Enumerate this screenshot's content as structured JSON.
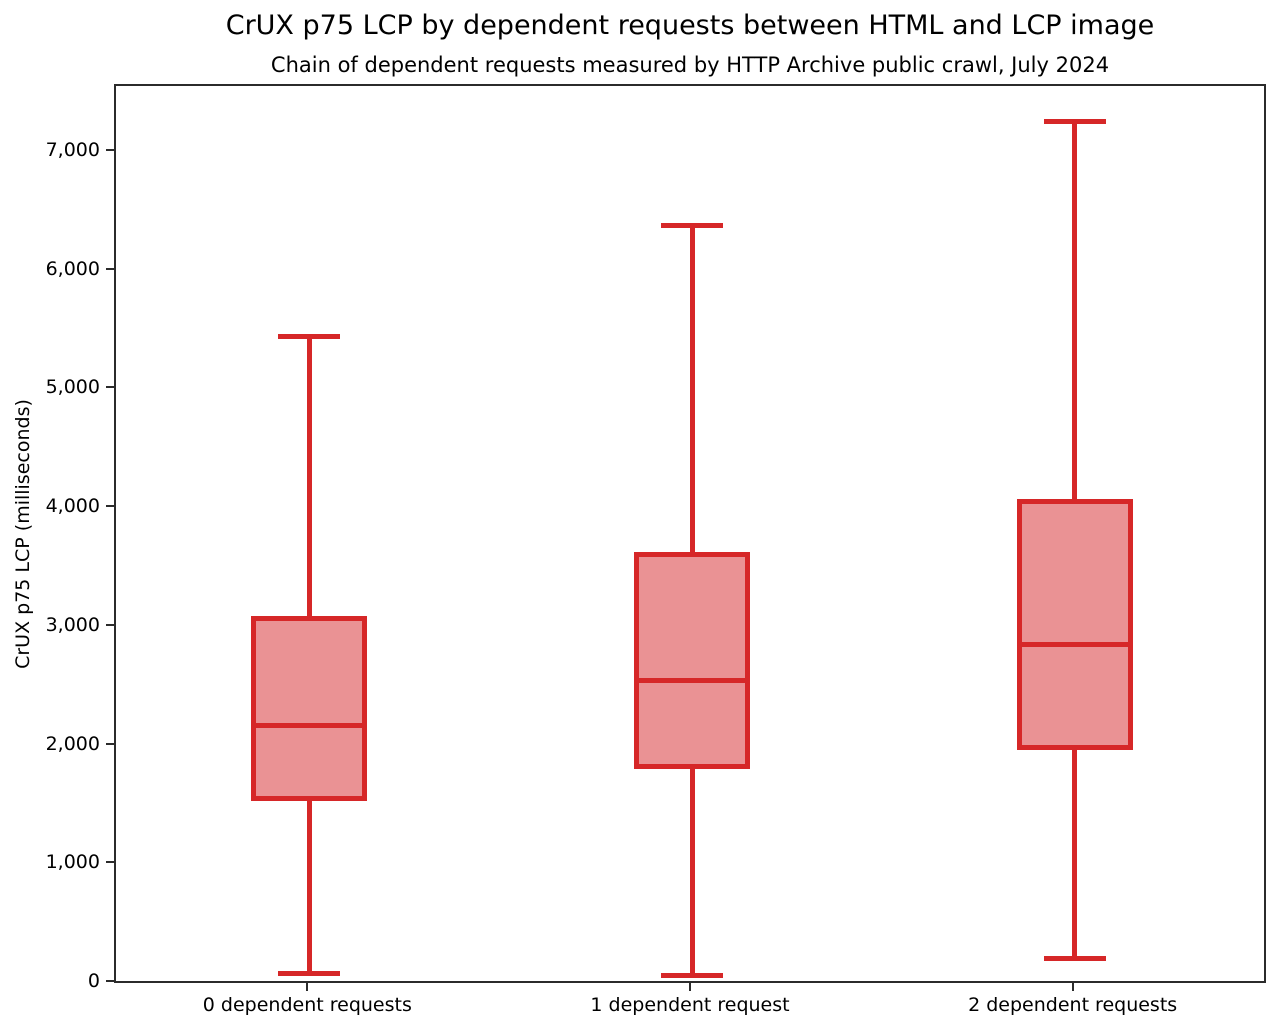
{
  "chart_data": {
    "type": "boxplot",
    "title": "CrUX p75 LCP by dependent requests between HTML and LCP image",
    "subtitle": "Chain of dependent requests measured by HTTP Archive public crawl, July 2024",
    "ylabel": "CrUX p75 LCP (milliseconds)",
    "xlabel": "",
    "ylim": [
      0,
      7540
    ],
    "yticks": [
      0,
      1000,
      2000,
      3000,
      4000,
      5000,
      6000,
      7000
    ],
    "ytick_labels": [
      "0",
      "1,000",
      "2,000",
      "3,000",
      "4,000",
      "5,000",
      "6,000",
      "7,000"
    ],
    "categories": [
      "0 dependent requests",
      "1 dependent request",
      "2 dependent requests"
    ],
    "series": [
      {
        "category": "0 dependent requests",
        "whisker_low": 80,
        "q1": 1530,
        "median": 2170,
        "q3": 3090,
        "whisker_high": 5450
      },
      {
        "category": "1 dependent request",
        "whisker_low": 65,
        "q1": 1800,
        "median": 2550,
        "q3": 3630,
        "whisker_high": 6380
      },
      {
        "category": "2 dependent requests",
        "whisker_low": 210,
        "q1": 1960,
        "median": 2850,
        "q3": 4080,
        "whisker_high": 7260
      }
    ],
    "grid": false,
    "legend": null,
    "colors": {
      "box_fill": "#ea9294",
      "box_edge": "#d62728",
      "whisker": "#d62728",
      "median": "#d62728",
      "axis": "#2b2b2b",
      "text": "#000000",
      "background": "#ffffff"
    }
  }
}
